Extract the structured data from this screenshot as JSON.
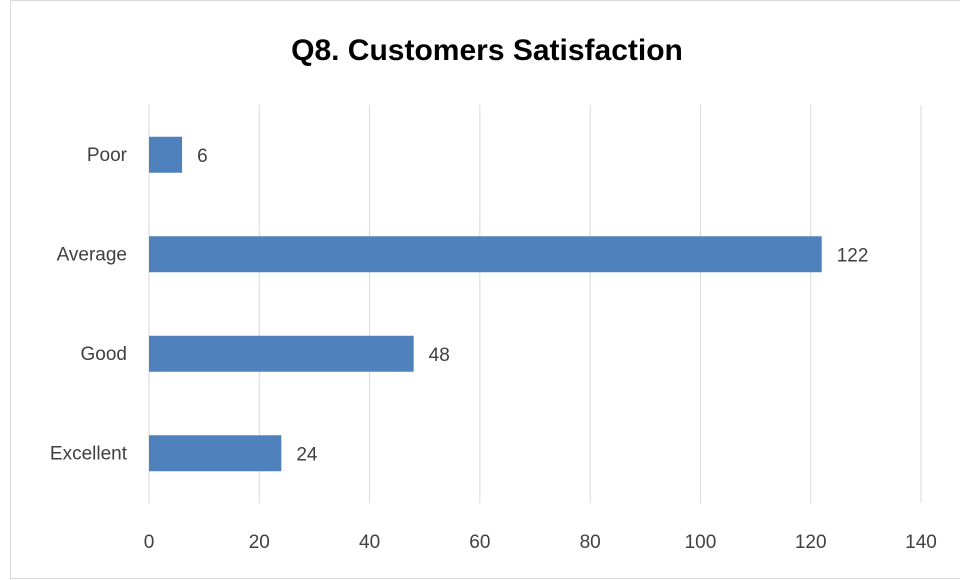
{
  "chart_data": {
    "type": "bar",
    "orientation": "horizontal",
    "title": "Q8. Customers Satisfaction",
    "categories": [
      "Poor",
      "Average",
      "Good",
      "Excellent"
    ],
    "values": [
      6,
      122,
      48,
      24
    ],
    "color": "#4f81bd",
    "xlim": [
      0,
      140
    ],
    "xticks": [
      0,
      20,
      40,
      60,
      80,
      100,
      120,
      140
    ],
    "grid": true,
    "data_labels": true
  }
}
